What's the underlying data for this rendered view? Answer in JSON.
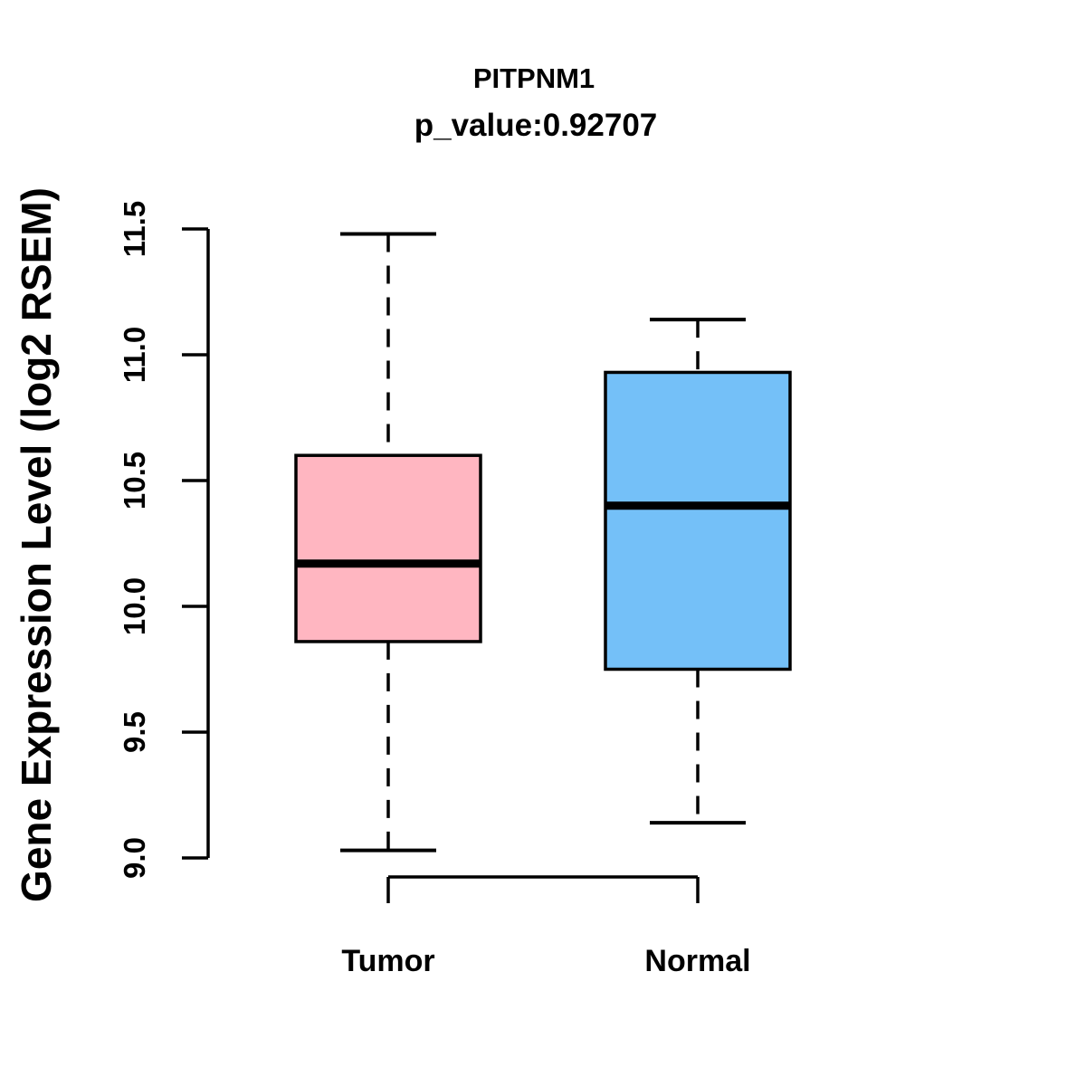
{
  "chart_data": {
    "type": "boxplot",
    "title": "PITPNM1",
    "subtitle": "p_value:0.92707",
    "p_value": "0.92707",
    "gene": "PITPNM1",
    "ylabel": "Gene Expression Level (log2 RSEM)",
    "xlabel": "",
    "ylim": [
      9.0,
      11.5
    ],
    "ytick_labels": [
      "9.0",
      "9.5",
      "10.0",
      "10.5",
      "11.0",
      "11.5"
    ],
    "grid": false,
    "legend_position": "none",
    "categories": [
      "Tumor",
      "Normal"
    ],
    "series": [
      {
        "name": "Tumor",
        "box_color": "#FFB6C1",
        "border_color": "#000000",
        "whisker_low": 9.03,
        "q1": 9.86,
        "median": 10.17,
        "q3": 10.6,
        "whisker_high": 11.48
      },
      {
        "name": "Normal",
        "box_color": "#74C0F8",
        "border_color": "#000000",
        "whisker_low": 9.14,
        "q1": 9.75,
        "median": 10.4,
        "q3": 10.93,
        "whisker_high": 11.14
      }
    ]
  }
}
